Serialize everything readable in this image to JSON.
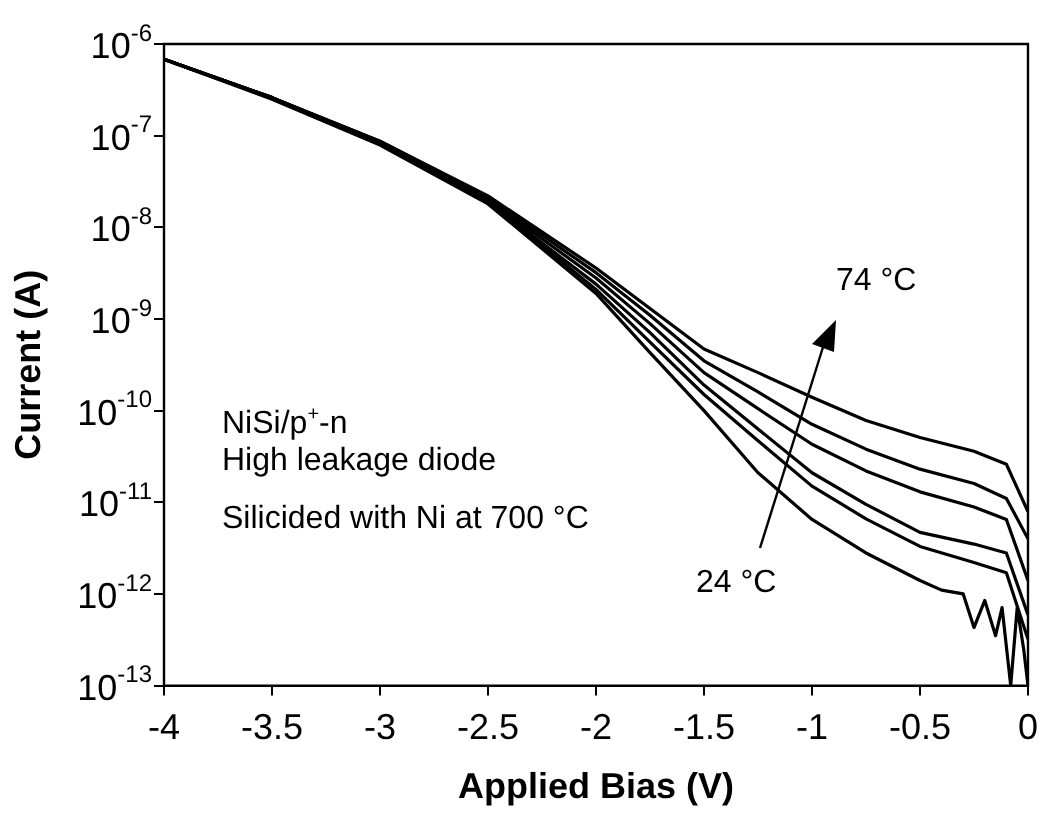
{
  "chart_data": {
    "type": "line",
    "xlabel": "Applied Bias (V)",
    "ylabel": "Current (A)",
    "x": [
      -4,
      -3.5,
      -3,
      -2.5,
      -2,
      -1.75,
      -1.5,
      -1.25,
      -1,
      -0.75,
      -0.5,
      -0.25,
      -0.1,
      0
    ],
    "series": [
      {
        "color": "#000000",
        "values": [
          6.8e-07,
          2.6e-07,
          8.7e-08,
          2.2e-08,
          3.6e-09,
          1.3e-09,
          4.7e-10,
          2.6e-10,
          1.4e-10,
          7.8e-11,
          5.1e-11,
          3.6e-11,
          2.6e-11,
          7.9e-12
        ]
      },
      {
        "color": "#000000",
        "values": [
          6.8e-07,
          2.6e-07,
          8.7e-08,
          2.1e-08,
          3.2e-09,
          1.1e-09,
          3.5e-10,
          1.6e-10,
          7.1e-11,
          3.8e-11,
          2.3e-11,
          1.6e-11,
          1.1e-11,
          4e-12
        ]
      },
      {
        "color": "#000000",
        "values": [
          6.8e-07,
          2.6e-07,
          8.5e-08,
          2e-08,
          2.8e-09,
          8.9e-10,
          2.6e-10,
          1.05e-10,
          4.3e-11,
          2.2e-11,
          1.3e-11,
          8.9e-12,
          6.5e-12,
          1.4e-12
        ]
      },
      {
        "color": "#000000",
        "values": [
          6.8e-07,
          2.6e-07,
          8.3e-08,
          1.9e-08,
          2.4e-09,
          7.1e-10,
          1.9e-10,
          6.3e-11,
          2.1e-11,
          9.5e-12,
          4.7e-12,
          3.5e-12,
          2.8e-12,
          5.9e-13
        ]
      },
      {
        "color": "#000000",
        "values": [
          6.8e-07,
          2.6e-07,
          8.3e-08,
          1.9e-08,
          2.1e-09,
          5.6e-10,
          1.5e-10,
          4.7e-11,
          1.5e-11,
          6.6e-12,
          3.3e-12,
          2.2e-12,
          1.7e-12,
          3.2e-13
        ]
      },
      {
        "color": "#000000",
        "x": [
          -4,
          -3.5,
          -3,
          -2.5,
          -2,
          -1.75,
          -1.5,
          -1.25,
          -1,
          -0.75,
          -0.5,
          -0.4,
          -0.3,
          -0.25,
          -0.2,
          -0.15,
          -0.12,
          -0.08,
          -0.05,
          -0.02,
          0
        ],
        "values": [
          6.8e-07,
          2.5e-07,
          7.9e-08,
          1.8e-08,
          1.9e-09,
          4.3e-10,
          1e-10,
          2.1e-11,
          6.5e-12,
          2.8e-12,
          1.4e-12,
          1.1e-12,
          1e-12,
          4.3e-13,
          8.5e-13,
          3.5e-13,
          7.1e-13,
          1e-13,
          7.1e-13,
          2.5e-13,
          1e-13
        ]
      }
    ],
    "xlim": [
      -4,
      0
    ],
    "xticks": [
      -4,
      -3.5,
      -3,
      -2.5,
      -2,
      -1.5,
      -1,
      -0.5,
      0
    ],
    "ylim": [
      1e-13,
      1e-06
    ],
    "yticks": [
      {
        "value": 1e-13,
        "label": "10$^{-13}$"
      },
      {
        "value": 1e-12,
        "label": "10$^{-12}$"
      },
      {
        "value": 1e-11,
        "label": "10$^{-11}$"
      },
      {
        "value": 1e-10,
        "label": "10$^{-10}$"
      },
      {
        "value": 1e-09,
        "label": "10$^{-9}$"
      },
      {
        "value": 1e-08,
        "label": "10$^{-8}$"
      },
      {
        "value": 1e-07,
        "label": "10$^{-7}$"
      },
      {
        "value": 1e-06,
        "label": "10$^{-6}$"
      }
    ],
    "log": "y",
    "grid": false,
    "legend": false,
    "marker": "none",
    "line_style": "solid",
    "annotations": [
      "NiSi/p$^{+}$-n",
      "High leakage diode",
      "Silicided with Ni at 700 °C",
      "74 °C",
      "24 °C"
    ]
  }
}
